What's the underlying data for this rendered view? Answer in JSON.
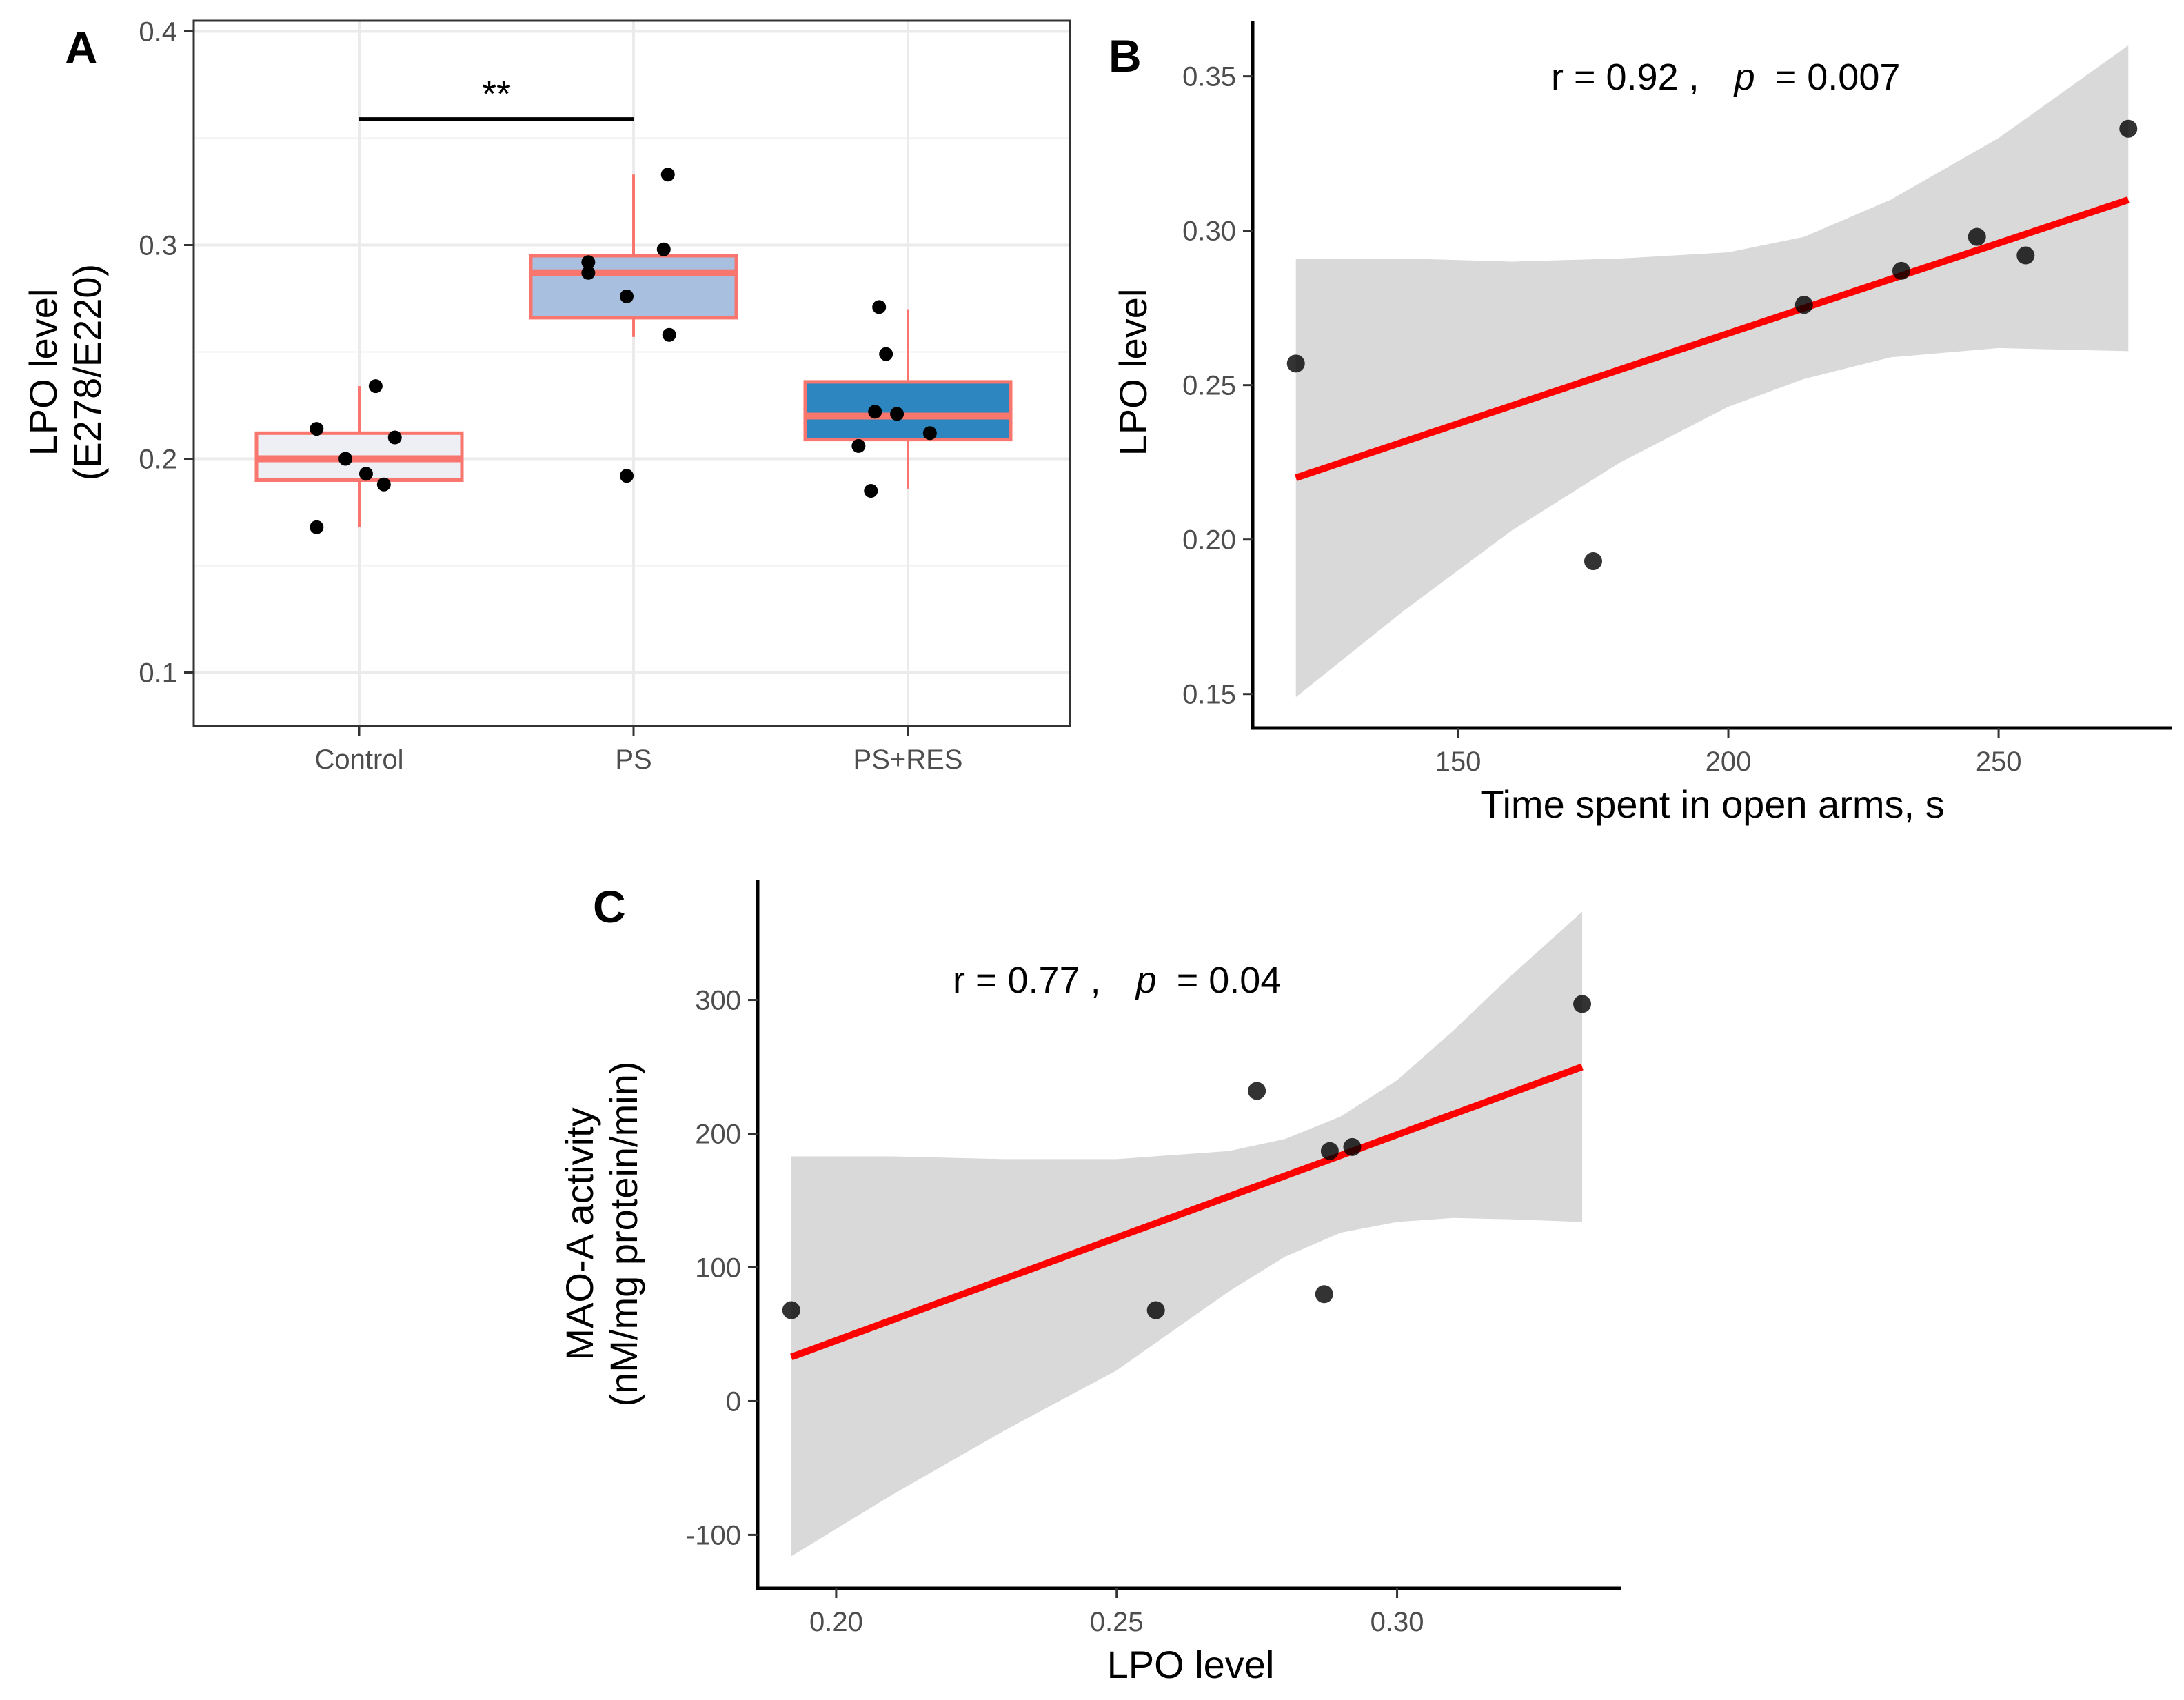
{
  "chart_data": [
    {
      "panel_label": "A",
      "type": "box",
      "categories": [
        "Control",
        "PS",
        "PS+RES"
      ],
      "ylabel": [
        "LPO level",
        "(E278/E220)"
      ],
      "xlabel": "",
      "ylim": [
        0.075,
        0.405
      ],
      "yticks": [
        "0.1",
        "0.2",
        "0.3",
        "0.4"
      ],
      "grid": true,
      "box_border_color": "#f8766d",
      "box_fills": [
        "#eeeef5",
        "#a9bfdf",
        "#2d86c0"
      ],
      "boxes": [
        {
          "category": "Control",
          "whisker_low": 0.168,
          "q1": 0.19,
          "median": 0.2,
          "q3": 0.212,
          "whisker_high": 0.234
        },
        {
          "category": "PS",
          "whisker_low": 0.257,
          "q1": 0.266,
          "median": 0.287,
          "q3": 0.295,
          "whisker_high": 0.333
        },
        {
          "category": "PS+RES",
          "whisker_low": 0.186,
          "q1": 0.209,
          "median": 0.22,
          "q3": 0.236,
          "whisker_high": 0.27
        }
      ],
      "points": [
        {
          "category": "Control",
          "jitter": -0.155,
          "y": 0.168
        },
        {
          "category": "Control",
          "jitter": -0.155,
          "y": 0.214
        },
        {
          "category": "Control",
          "jitter": -0.05,
          "y": 0.2
        },
        {
          "category": "Control",
          "jitter": 0.025,
          "y": 0.193
        },
        {
          "category": "Control",
          "jitter": 0.06,
          "y": 0.234
        },
        {
          "category": "Control",
          "jitter": 0.09,
          "y": 0.188
        },
        {
          "category": "Control",
          "jitter": 0.13,
          "y": 0.21
        },
        {
          "category": "PS",
          "jitter": -0.165,
          "y": 0.292
        },
        {
          "category": "PS",
          "jitter": -0.165,
          "y": 0.287
        },
        {
          "category": "PS",
          "jitter": -0.025,
          "y": 0.276
        },
        {
          "category": "PS",
          "jitter": -0.025,
          "y": 0.192
        },
        {
          "category": "PS",
          "jitter": 0.11,
          "y": 0.298
        },
        {
          "category": "PS",
          "jitter": 0.125,
          "y": 0.333
        },
        {
          "category": "PS",
          "jitter": 0.13,
          "y": 0.258
        },
        {
          "category": "PS+RES",
          "jitter": -0.18,
          "y": 0.206
        },
        {
          "category": "PS+RES",
          "jitter": -0.135,
          "y": 0.185
        },
        {
          "category": "PS+RES",
          "jitter": -0.12,
          "y": 0.222
        },
        {
          "category": "PS+RES",
          "jitter": -0.105,
          "y": 0.271
        },
        {
          "category": "PS+RES",
          "jitter": -0.08,
          "y": 0.249
        },
        {
          "category": "PS+RES",
          "jitter": -0.04,
          "y": 0.221
        },
        {
          "category": "PS+RES",
          "jitter": 0.08,
          "y": 0.212
        }
      ],
      "significance": {
        "from": "Control",
        "to": "PS",
        "y": 0.359,
        "label": "**"
      }
    },
    {
      "panel_label": "B",
      "type": "scatter",
      "xlabel": "Time spent in open arms, s",
      "ylabel": "LPO level",
      "xlim": [
        112,
        282
      ],
      "ylim": [
        0.139,
        0.368
      ],
      "xticks": [
        "150",
        "200",
        "250"
      ],
      "yticks": [
        "0.15",
        "0.20",
        "0.25",
        "0.30",
        "0.35"
      ],
      "grid": false,
      "annotation": {
        "r_text": "r = 0.92 ,",
        "p_label": "p",
        "p_text": "= 0.007"
      },
      "points": [
        {
          "x": 120,
          "y": 0.257
        },
        {
          "x": 175,
          "y": 0.193
        },
        {
          "x": 214,
          "y": 0.276
        },
        {
          "x": 232,
          "y": 0.287
        },
        {
          "x": 246,
          "y": 0.298
        },
        {
          "x": 255,
          "y": 0.292
        },
        {
          "x": 274,
          "y": 0.333
        }
      ],
      "fit_line": {
        "x": [
          120,
          274
        ],
        "y": [
          0.22,
          0.31
        ],
        "color": "#ff0000"
      },
      "confidence_band": {
        "x": [
          120,
          140,
          160,
          180,
          200,
          214,
          230,
          250,
          274
        ],
        "lower": [
          0.149,
          0.177,
          0.203,
          0.225,
          0.243,
          0.252,
          0.259,
          0.262,
          0.261
        ],
        "upper": [
          0.291,
          0.291,
          0.29,
          0.291,
          0.293,
          0.298,
          0.31,
          0.33,
          0.36
        ],
        "color": "#d9d9d9"
      }
    },
    {
      "panel_label": "C",
      "type": "scatter",
      "xlabel": "LPO level",
      "ylabel": [
        "MAO-A activity",
        "(nM/mg protein/min)"
      ],
      "xlim": [
        0.186,
        0.34
      ],
      "ylim": [
        -140,
        390
      ],
      "xticks": [
        "0.20",
        "0.25",
        "0.30"
      ],
      "yticks": [
        "-100",
        "0",
        "100",
        "200",
        "300"
      ],
      "grid": false,
      "annotation": {
        "r_text": "r = 0.77 ,",
        "p_label": "p",
        "p_text": "= 0.04"
      },
      "points": [
        {
          "x": 0.192,
          "y": 68
        },
        {
          "x": 0.257,
          "y": 68
        },
        {
          "x": 0.275,
          "y": 232
        },
        {
          "x": 0.287,
          "y": 80
        },
        {
          "x": 0.288,
          "y": 187
        },
        {
          "x": 0.292,
          "y": 190
        },
        {
          "x": 0.333,
          "y": 297
        }
      ],
      "fit_line": {
        "x": [
          0.192,
          0.333
        ],
        "y": [
          33,
          250
        ],
        "color": "#ff0000"
      },
      "confidence_band": {
        "x": [
          0.192,
          0.21,
          0.23,
          0.25,
          0.27,
          0.28,
          0.29,
          0.3,
          0.31,
          0.32,
          0.333
        ],
        "lower": [
          -116,
          -70,
          -22,
          23,
          82,
          108,
          126,
          134,
          137,
          136,
          134
        ],
        "upper": [
          183,
          183,
          181,
          181,
          187,
          196,
          213,
          240,
          277,
          317,
          366
        ],
        "color": "#d9d9d9"
      }
    }
  ]
}
